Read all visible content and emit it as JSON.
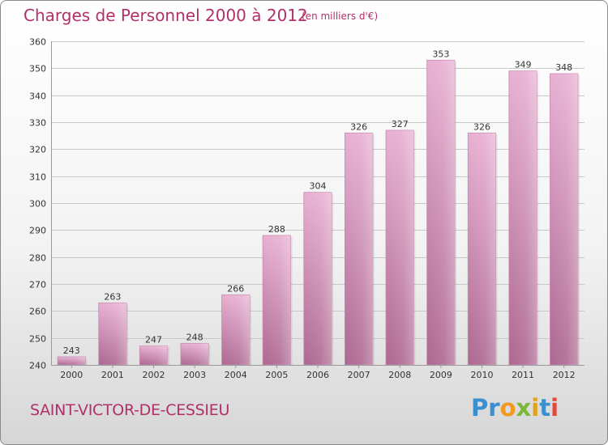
{
  "header": {
    "title": "Charges de Personnel 2000 à 2012",
    "subtitle": "(en milliers d'€)"
  },
  "footer": {
    "commune": "SAINT-VICTOR-DE-CESSIEU",
    "logo_text": "Proxiti",
    "logo_letters": [
      {
        "ch": "P",
        "color": "#3a8fd0"
      },
      {
        "ch": "r",
        "color": "#3a8fd0"
      },
      {
        "ch": "o",
        "color": "#f19a1f"
      },
      {
        "ch": "x",
        "color": "#7ab83a"
      },
      {
        "ch": "i",
        "color": "#e0a21c"
      },
      {
        "ch": "t",
        "color": "#3a8fd0"
      },
      {
        "ch": "i",
        "color": "#e04a3a"
      }
    ]
  },
  "colors": {
    "accent": "#b0306a",
    "bar_light": "#e6aacd",
    "bar_dark": "#b0648e",
    "grid": "#c8c8c8"
  },
  "chart_data": {
    "type": "bar",
    "title": "Charges de Personnel 2000 à 2012",
    "subtitle": "(en milliers d'€)",
    "categories": [
      "2000",
      "2001",
      "2002",
      "2003",
      "2004",
      "2005",
      "2006",
      "2007",
      "2008",
      "2009",
      "2010",
      "2011",
      "2012"
    ],
    "values": [
      243,
      263,
      247,
      248,
      266,
      288,
      304,
      326,
      327,
      353,
      326,
      349,
      348
    ],
    "ylim": [
      240,
      360
    ],
    "yticks": [
      240,
      250,
      260,
      270,
      280,
      290,
      300,
      310,
      320,
      330,
      340,
      350,
      360
    ],
    "grid": true,
    "data_labels": true
  }
}
